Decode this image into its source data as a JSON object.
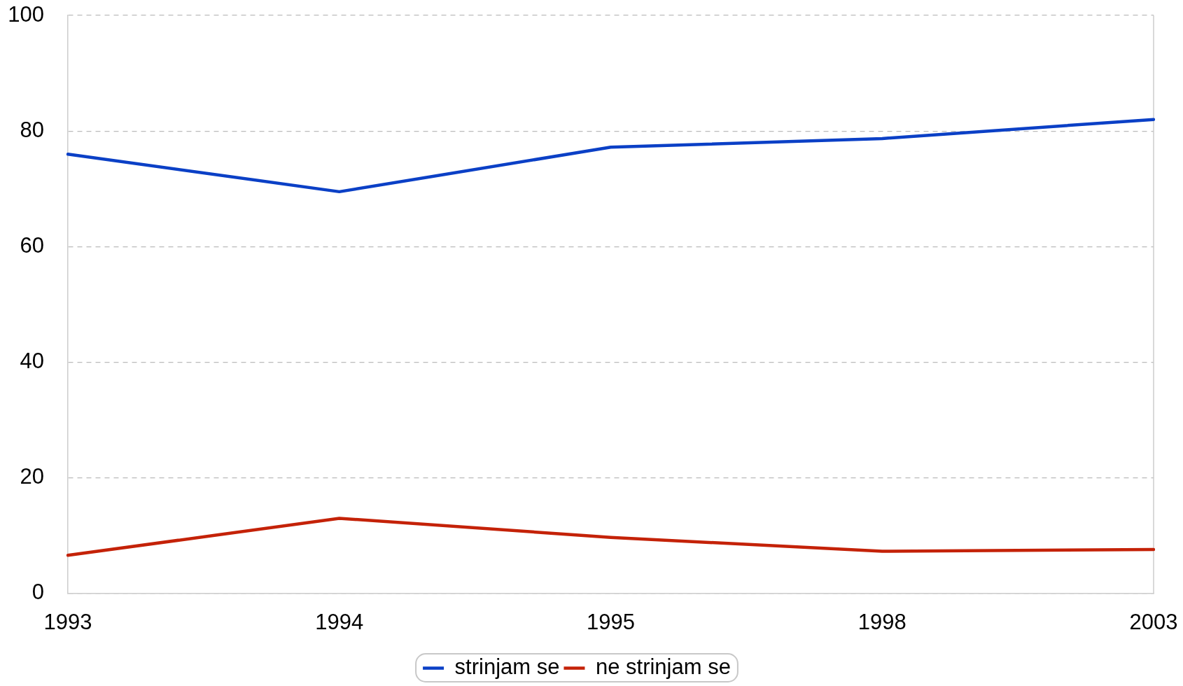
{
  "chart_data": {
    "type": "line",
    "categories": [
      "1993",
      "1994",
      "1995",
      "1998",
      "2003"
    ],
    "series": [
      {
        "name": "strinjam se",
        "color": "#0b40c6",
        "values": [
          76,
          69.5,
          77.2,
          78.7,
          82
        ]
      },
      {
        "name": "ne strinjam se",
        "color": "#c42208",
        "values": [
          6.6,
          13,
          9.7,
          7.3,
          7.6
        ]
      }
    ],
    "ylim": [
      0,
      100
    ],
    "yticks": [
      0,
      20,
      40,
      60,
      80,
      100
    ],
    "grid": "y",
    "legend": "bottom",
    "marker": "none",
    "line_style": "solid"
  }
}
